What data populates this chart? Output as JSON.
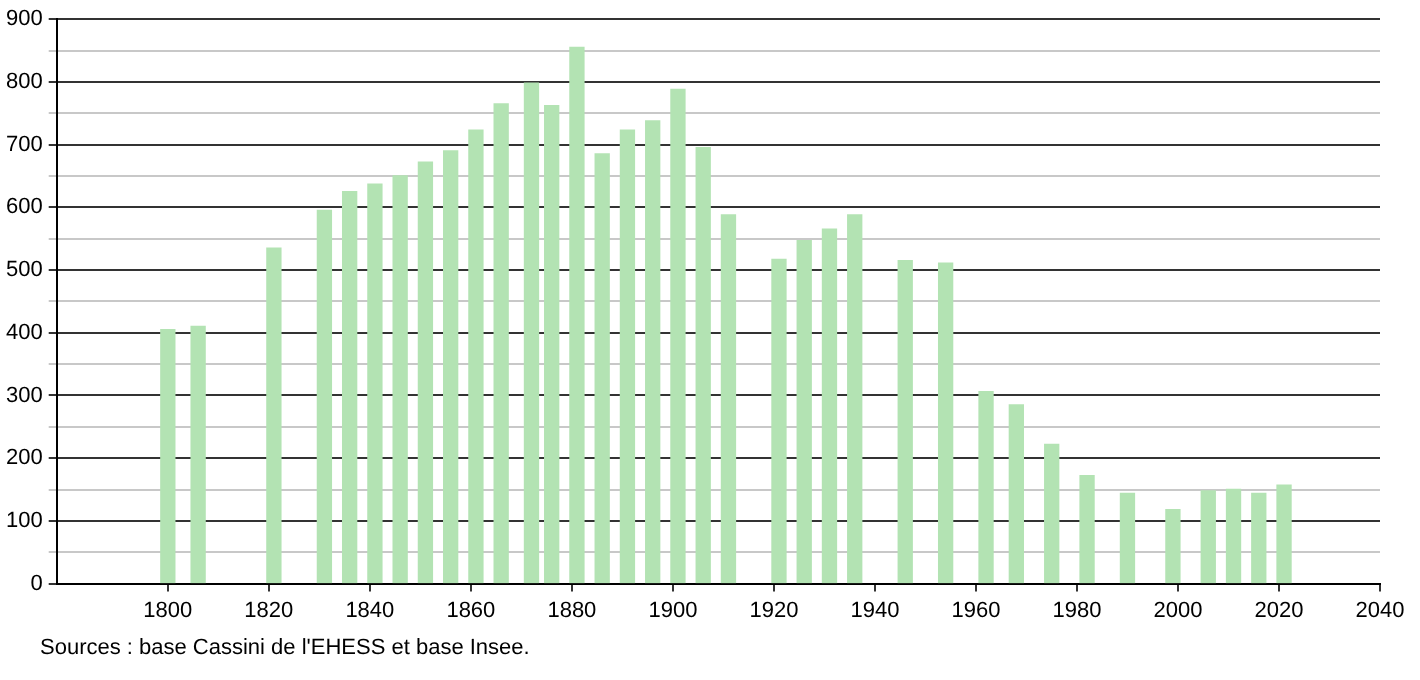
{
  "chart_data": {
    "type": "bar",
    "x": [
      1800,
      1806,
      1821,
      1831,
      1836,
      1841,
      1846,
      1851,
      1856,
      1861,
      1866,
      1872,
      1876,
      1881,
      1886,
      1891,
      1896,
      1901,
      1906,
      1911,
      1921,
      1926,
      1931,
      1936,
      1946,
      1954,
      1962,
      1968,
      1975,
      1982,
      1990,
      1999,
      2006,
      2011,
      2016,
      2021
    ],
    "values": [
      405,
      410,
      535,
      595,
      625,
      637,
      650,
      672,
      690,
      723,
      765,
      798,
      762,
      855,
      685,
      723,
      738,
      788,
      695,
      588,
      517,
      547,
      565,
      588,
      515,
      511,
      306,
      285,
      222,
      172,
      144,
      118,
      148,
      150,
      144,
      157
    ],
    "color": "#b3e3b3",
    "xlim": [
      1778,
      2040
    ],
    "xticks": [
      1800,
      1820,
      1840,
      1860,
      1880,
      1900,
      1920,
      1940,
      1960,
      1980,
      2000,
      2020,
      2040
    ],
    "ylim": [
      0,
      900
    ],
    "yticks": [
      0,
      {
        "value": 50,
        "label": null
      },
      100,
      {
        "value": 150,
        "label": null
      },
      200,
      {
        "value": 250,
        "label": null
      },
      300,
      {
        "value": 350,
        "label": null
      },
      400,
      {
        "value": 450,
        "label": null
      },
      500,
      {
        "value": 550,
        "label": null
      },
      600,
      {
        "value": 650,
        "label": null
      },
      700,
      {
        "value": 750,
        "label": null
      },
      800,
      {
        "value": 850,
        "label": null
      },
      900
    ],
    "grid": "y",
    "legend": false,
    "annotations": [
      "Sources : base Cassini de l'EHESS et base Insee."
    ]
  }
}
